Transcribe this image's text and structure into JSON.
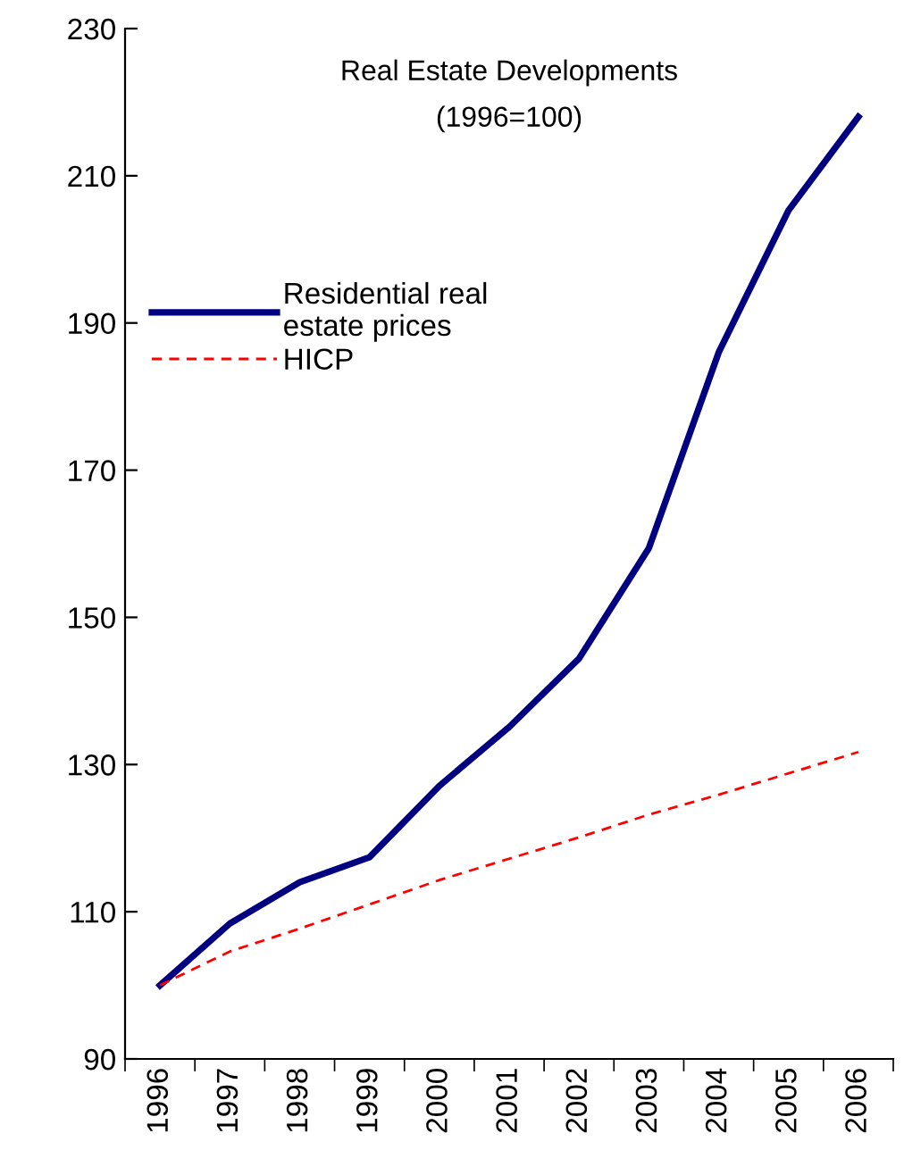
{
  "chart_data": {
    "type": "line",
    "title": "Real Estate Developments",
    "subtitle": "(1996=100)",
    "categories": [
      "1996",
      "1997",
      "1998",
      "1999",
      "2000",
      "2001",
      "2002",
      "2003",
      "2004",
      "2005",
      "2006"
    ],
    "series": [
      {
        "name": "Residential real\nestate prices",
        "color": "#000080",
        "line_style": "solid",
        "values": [
          100,
          108.4,
          114,
          117.4,
          127.1,
          135.1,
          144.4,
          159.4,
          186,
          205.3,
          218
        ]
      },
      {
        "name": "HICP",
        "color": "#ff0000",
        "line_style": "dashed",
        "values": [
          100,
          104.6,
          107.7,
          111,
          114.3,
          117.2,
          120.1,
          123.2,
          125.9,
          128.8,
          131.7
        ]
      }
    ],
    "ylim": [
      90,
      230
    ],
    "yticks": [
      90,
      110,
      130,
      150,
      170,
      190,
      210,
      230
    ],
    "grid": false,
    "legend": "left",
    "marker": "none"
  }
}
